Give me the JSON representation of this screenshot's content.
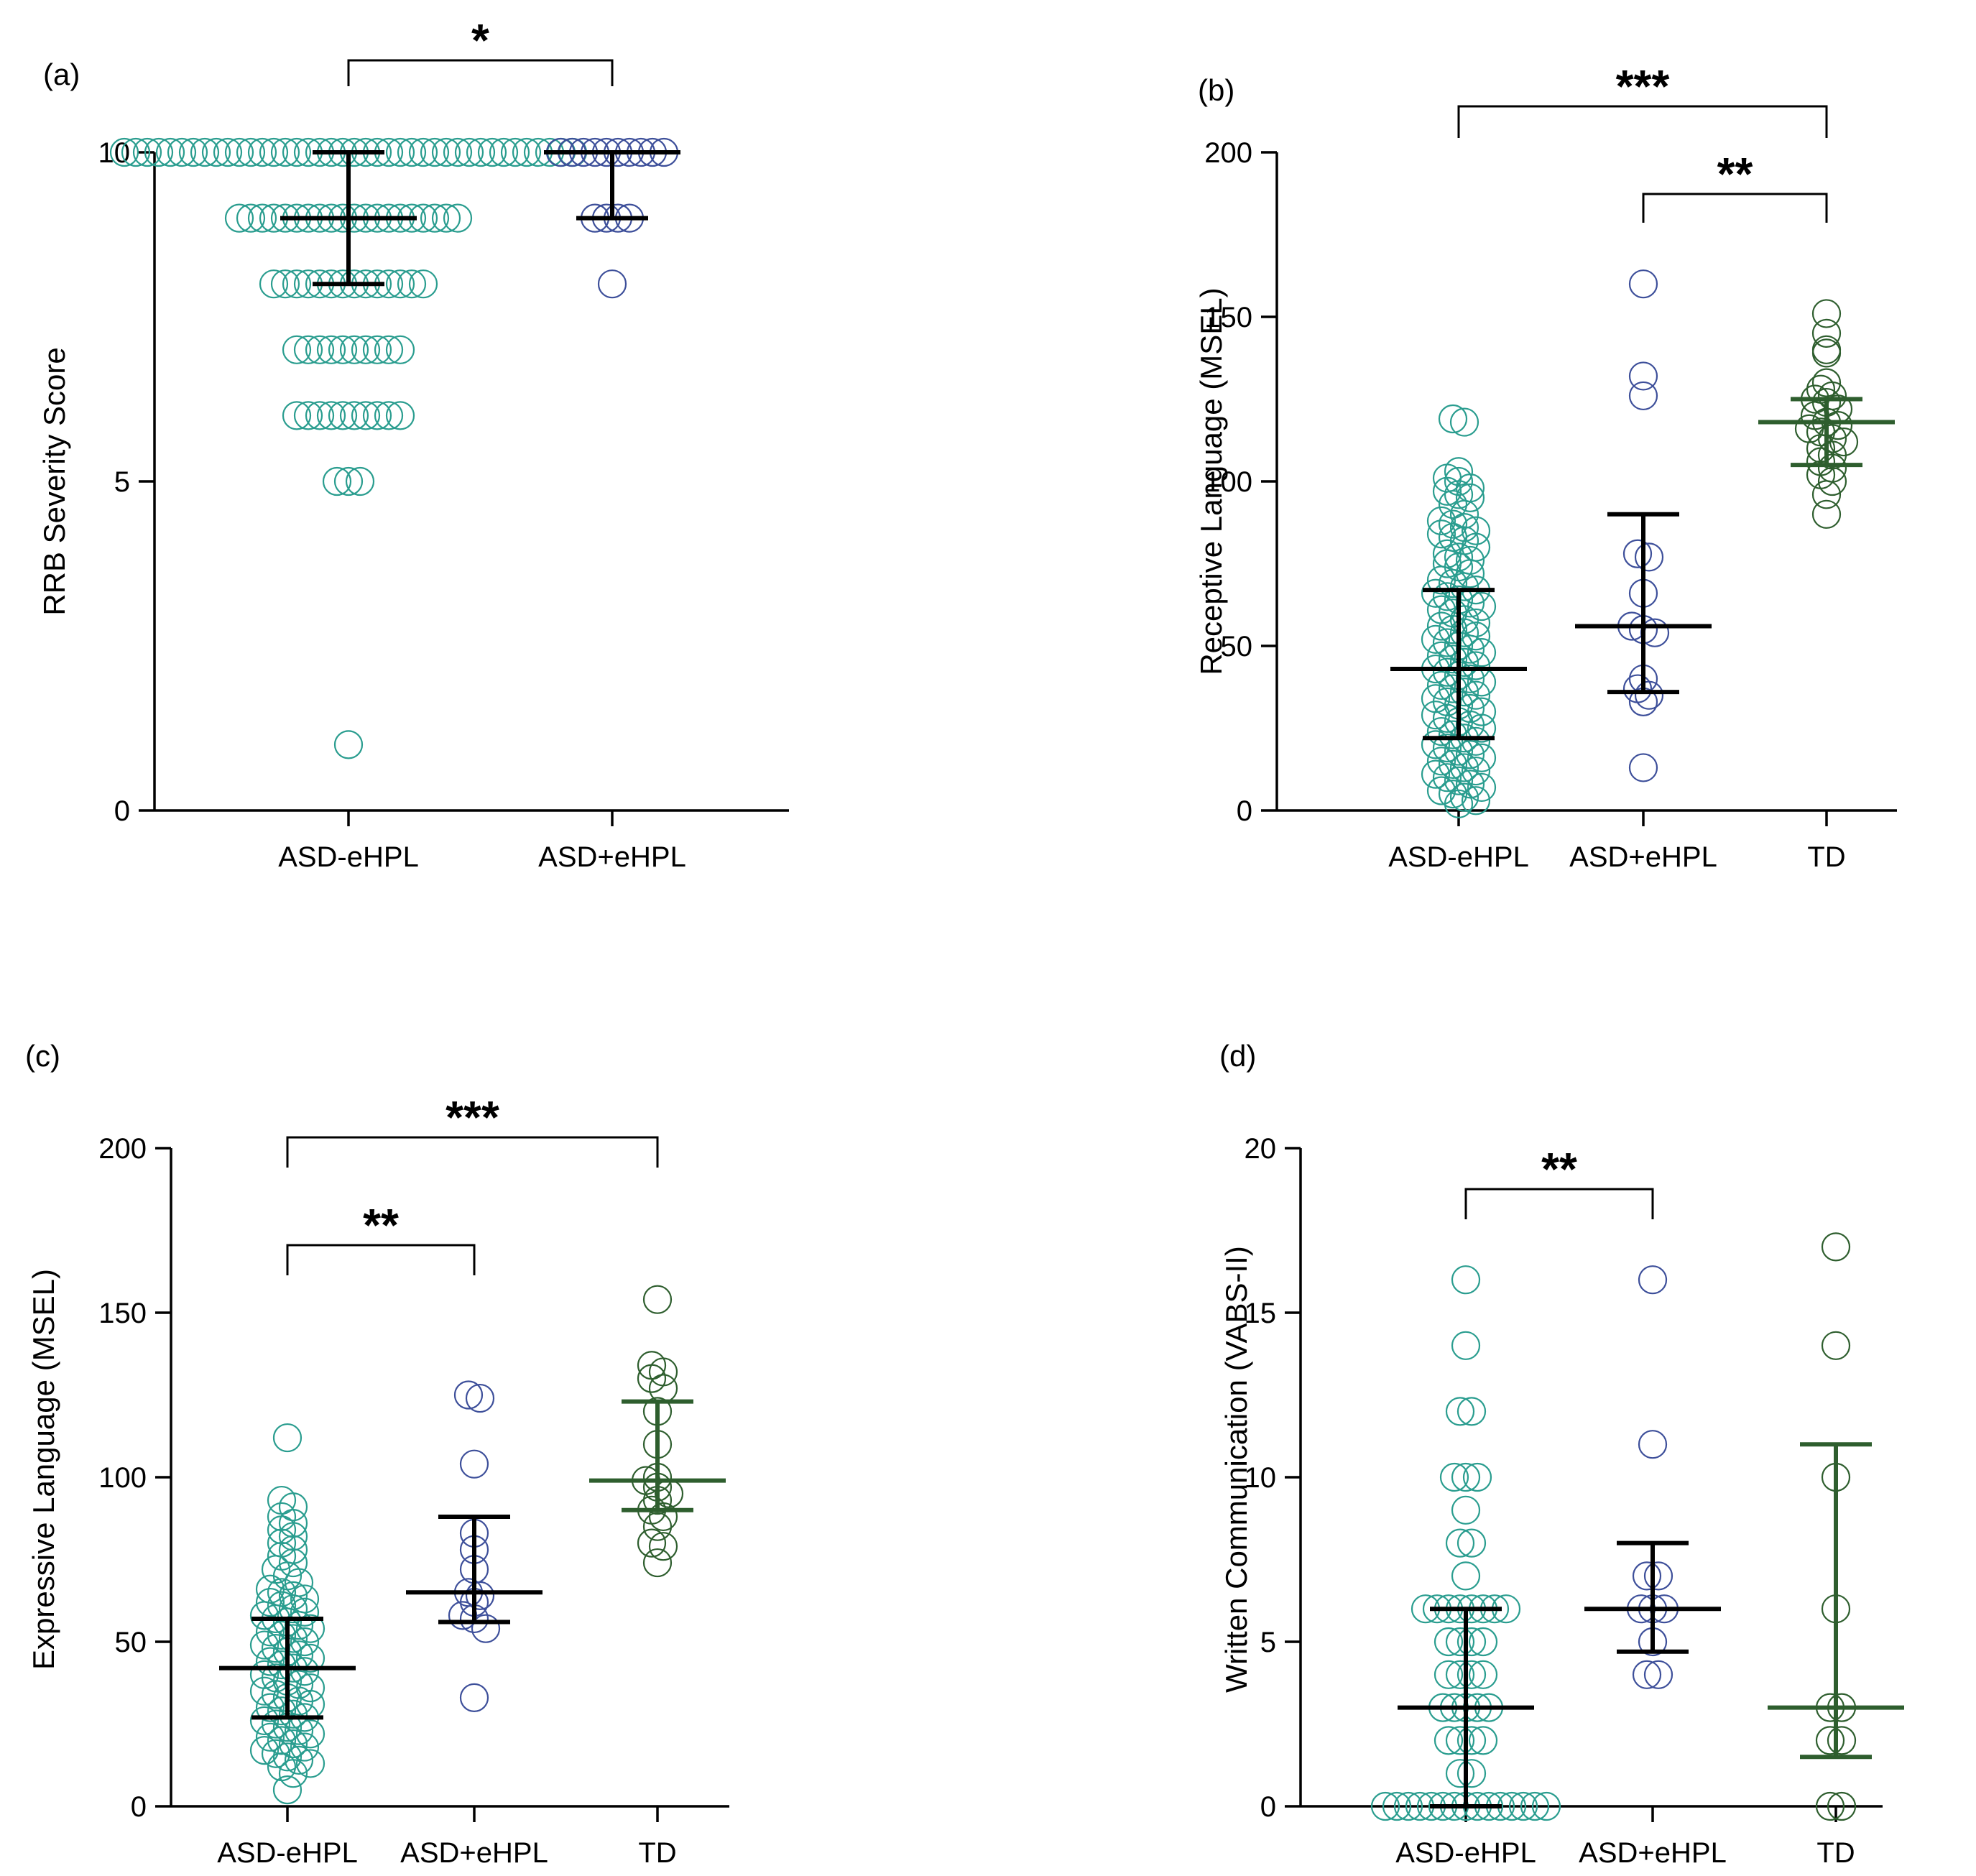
{
  "figure": {
    "colors": {
      "asd_minus": "#2a9d8f",
      "asd_plus": "#3d4f9a",
      "td": "#2e5e2e",
      "stats": "#000000"
    }
  },
  "chart_data": [
    {
      "id": "a",
      "panel_label": "(a)",
      "type": "scatter",
      "ylabel": "RRB Severity Score",
      "ylim": [
        0,
        10
      ],
      "yticks": [
        "0",
        "5",
        "10"
      ],
      "categories": [
        "ASD-eHPL",
        "ASD+eHPL"
      ],
      "groups": [
        {
          "name": "ASD-eHPL",
          "color": "#2a9d8f",
          "median": 9,
          "q1": 8,
          "q3": 10,
          "values": [
            10,
            10,
            10,
            10,
            10,
            10,
            10,
            10,
            10,
            10,
            10,
            10,
            10,
            10,
            10,
            10,
            10,
            10,
            10,
            10,
            10,
            10,
            10,
            10,
            10,
            10,
            10,
            10,
            10,
            10,
            10,
            10,
            10,
            10,
            10,
            10,
            10,
            10,
            10,
            10,
            9,
            9,
            9,
            9,
            9,
            9,
            9,
            9,
            9,
            9,
            9,
            9,
            9,
            9,
            9,
            9,
            9,
            9,
            9,
            9,
            8,
            8,
            8,
            8,
            8,
            8,
            8,
            8,
            8,
            8,
            8,
            8,
            8,
            8,
            7,
            7,
            7,
            7,
            7,
            7,
            7,
            7,
            7,
            7,
            6,
            6,
            6,
            6,
            6,
            6,
            6,
            6,
            6,
            6,
            5,
            5,
            5,
            1
          ]
        },
        {
          "name": "ASD+eHPL",
          "color": "#3d4f9a",
          "median": 10,
          "q1": 9,
          "q3": 10,
          "values": [
            10,
            10,
            10,
            10,
            10,
            10,
            10,
            10,
            10,
            10,
            9,
            9,
            9,
            9,
            8
          ]
        }
      ],
      "comparisons": [
        {
          "from": 0,
          "to": 1,
          "label": "*"
        }
      ]
    },
    {
      "id": "b",
      "panel_label": "(b)",
      "type": "scatter",
      "ylabel": "Receptive Language (MSEL)",
      "ylim": [
        0,
        200
      ],
      "yticks": [
        "0",
        "50",
        "100",
        "150",
        "200"
      ],
      "categories": [
        "ASD-eHPL",
        "ASD+eHPL",
        "TD"
      ],
      "groups": [
        {
          "name": "ASD-eHPL",
          "color": "#2a9d8f",
          "median": 43,
          "q1": 22,
          "q3": 67,
          "values": [
            119,
            118,
            103,
            101,
            100,
            98,
            97,
            96,
            95,
            93,
            90,
            88,
            87,
            86,
            85,
            84,
            83,
            82,
            80,
            78,
            77,
            76,
            75,
            74,
            72,
            70,
            69,
            68,
            67,
            66,
            65,
            64,
            63,
            62,
            61,
            60,
            58,
            57,
            56,
            55,
            54,
            53,
            52,
            51,
            50,
            49,
            48,
            47,
            46,
            45,
            44,
            43,
            42,
            41,
            40,
            39,
            38,
            37,
            36,
            35,
            34,
            33,
            32,
            31,
            30,
            29,
            28,
            27,
            26,
            25,
            24,
            23,
            22,
            21,
            20,
            19,
            18,
            17,
            16,
            15,
            14,
            13,
            12,
            11,
            10,
            9,
            8,
            7,
            6,
            5,
            4,
            3,
            2
          ]
        },
        {
          "name": "ASD+eHPL",
          "color": "#3d4f9a",
          "median": 56,
          "q1": 36,
          "q3": 90,
          "values": [
            160,
            132,
            126,
            78,
            77,
            66,
            56,
            55,
            54,
            40,
            37,
            35,
            33,
            13
          ]
        },
        {
          "name": "TD",
          "color": "#2e5e2e",
          "median": 118,
          "q1": 105,
          "q3": 125,
          "values": [
            151,
            145,
            140,
            139,
            130,
            128,
            126,
            125,
            124,
            122,
            120,
            118,
            117,
            116,
            115,
            113,
            112,
            110,
            108,
            106,
            104,
            102,
            100,
            96,
            90
          ]
        }
      ],
      "comparisons": [
        {
          "from": 0,
          "to": 2,
          "label": "***"
        },
        {
          "from": 1,
          "to": 2,
          "label": "**"
        }
      ]
    },
    {
      "id": "c",
      "panel_label": "(c)",
      "type": "scatter",
      "ylabel": "Expressive Language (MSEL)",
      "ylim": [
        0,
        200
      ],
      "yticks": [
        "0",
        "50",
        "100",
        "150",
        "200"
      ],
      "categories": [
        "ASD-eHPL",
        "ASD+eHPL",
        "TD"
      ],
      "groups": [
        {
          "name": "ASD-eHPL",
          "color": "#2a9d8f",
          "median": 42,
          "q1": 27,
          "q3": 57,
          "values": [
            112,
            93,
            91,
            88,
            86,
            84,
            82,
            80,
            78,
            76,
            74,
            72,
            70,
            68,
            66,
            65,
            64,
            63,
            62,
            61,
            60,
            59,
            58,
            57,
            56,
            55,
            54,
            53,
            52,
            51,
            50,
            49,
            48,
            47,
            46,
            45,
            44,
            43,
            42,
            41,
            40,
            39,
            38,
            37,
            36,
            35,
            34,
            33,
            32,
            31,
            30,
            29,
            28,
            27,
            26,
            25,
            24,
            23,
            22,
            21,
            20,
            19,
            18,
            17,
            16,
            15,
            14,
            13,
            12,
            10,
            5
          ]
        },
        {
          "name": "ASD+eHPL",
          "color": "#3d4f9a",
          "median": 65,
          "q1": 56,
          "q3": 88,
          "values": [
            125,
            124,
            104,
            83,
            78,
            72,
            65,
            64,
            62,
            58,
            57,
            54,
            33
          ]
        },
        {
          "name": "TD",
          "color": "#2e5e2e",
          "median": 99,
          "q1": 90,
          "q3": 123,
          "values": [
            154,
            134,
            132,
            130,
            127,
            120,
            110,
            100,
            99,
            97,
            95,
            93,
            90,
            88,
            85,
            80,
            79,
            74
          ]
        }
      ],
      "comparisons": [
        {
          "from": 0,
          "to": 2,
          "label": "***"
        },
        {
          "from": 0,
          "to": 1,
          "label": "**"
        }
      ]
    },
    {
      "id": "d",
      "panel_label": "(d)",
      "type": "scatter",
      "ylabel": "Written Communication (VABS-II)",
      "ylim": [
        0,
        20
      ],
      "yticks": [
        "0",
        "5",
        "10",
        "15",
        "20"
      ],
      "categories": [
        "ASD-eHPL",
        "ASD+eHPL",
        "TD"
      ],
      "groups": [
        {
          "name": "ASD-eHPL",
          "color": "#2a9d8f",
          "median": 3,
          "q1": 0,
          "q3": 6,
          "values": [
            16,
            14,
            12,
            12,
            10,
            10,
            10,
            9,
            8,
            8,
            7,
            6,
            6,
            6,
            6,
            6,
            6,
            6,
            6,
            5,
            5,
            5,
            5,
            4,
            4,
            4,
            4,
            3,
            3,
            3,
            3,
            3,
            2,
            2,
            2,
            2,
            1,
            1,
            0,
            0,
            0,
            0,
            0,
            0,
            0,
            0,
            0,
            0,
            0,
            0,
            0,
            0,
            0
          ]
        },
        {
          "name": "ASD+eHPL",
          "color": "#3d4f9a",
          "median": 6,
          "q1": 4.7,
          "q3": 8,
          "values": [
            16,
            11,
            7,
            7,
            6,
            6,
            6,
            5,
            4,
            4
          ]
        },
        {
          "name": "TD",
          "color": "#2e5e2e",
          "median": 3,
          "q1": 1.5,
          "q3": 11,
          "values": [
            17,
            14,
            10,
            6,
            3,
            3,
            2,
            2,
            0,
            0
          ]
        }
      ],
      "comparisons": [
        {
          "from": 0,
          "to": 1,
          "label": "**"
        }
      ]
    }
  ]
}
